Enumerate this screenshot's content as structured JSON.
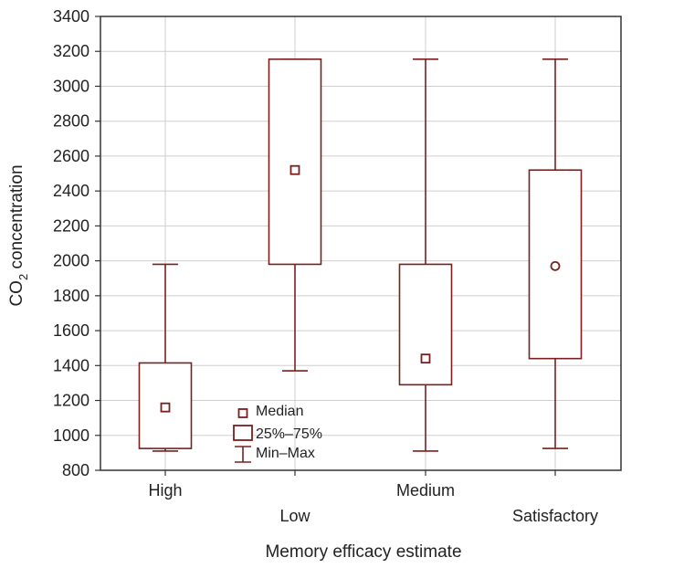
{
  "chart_data": {
    "type": "box",
    "xlabel": "Memory efficacy estimate",
    "ylabel": {
      "main": "CO",
      "sub": "2",
      "rest": " concentration"
    },
    "ylim": [
      800,
      3400
    ],
    "yticks": [
      800,
      1000,
      1200,
      1400,
      1600,
      1800,
      2000,
      2200,
      2400,
      2600,
      2800,
      3000,
      3200,
      3400
    ],
    "grid": true,
    "categories": [
      {
        "label": "High",
        "min": 910,
        "q1": 925,
        "median": 1160,
        "q3": 1415,
        "max": 1980,
        "marker": "square"
      },
      {
        "label": "Low",
        "min": 1370,
        "q1": 1980,
        "median": 2520,
        "q3": 3155,
        "max": 3155,
        "marker": "square"
      },
      {
        "label": "Medium",
        "min": 910,
        "q1": 1290,
        "median": 1440,
        "q3": 1980,
        "max": 3155,
        "marker": "square"
      },
      {
        "label": "Satisfactory",
        "min": 925,
        "q1": 1440,
        "median": 1970,
        "q3": 2520,
        "max": 3155,
        "marker": "circle"
      }
    ],
    "legend": [
      {
        "key": "median",
        "label": "Median"
      },
      {
        "key": "box",
        "label": "25%–75%"
      },
      {
        "key": "whisker",
        "label": "Min–Max"
      }
    ],
    "legend_position": "inside-bottom-center",
    "color": "#7a1f1f"
  }
}
